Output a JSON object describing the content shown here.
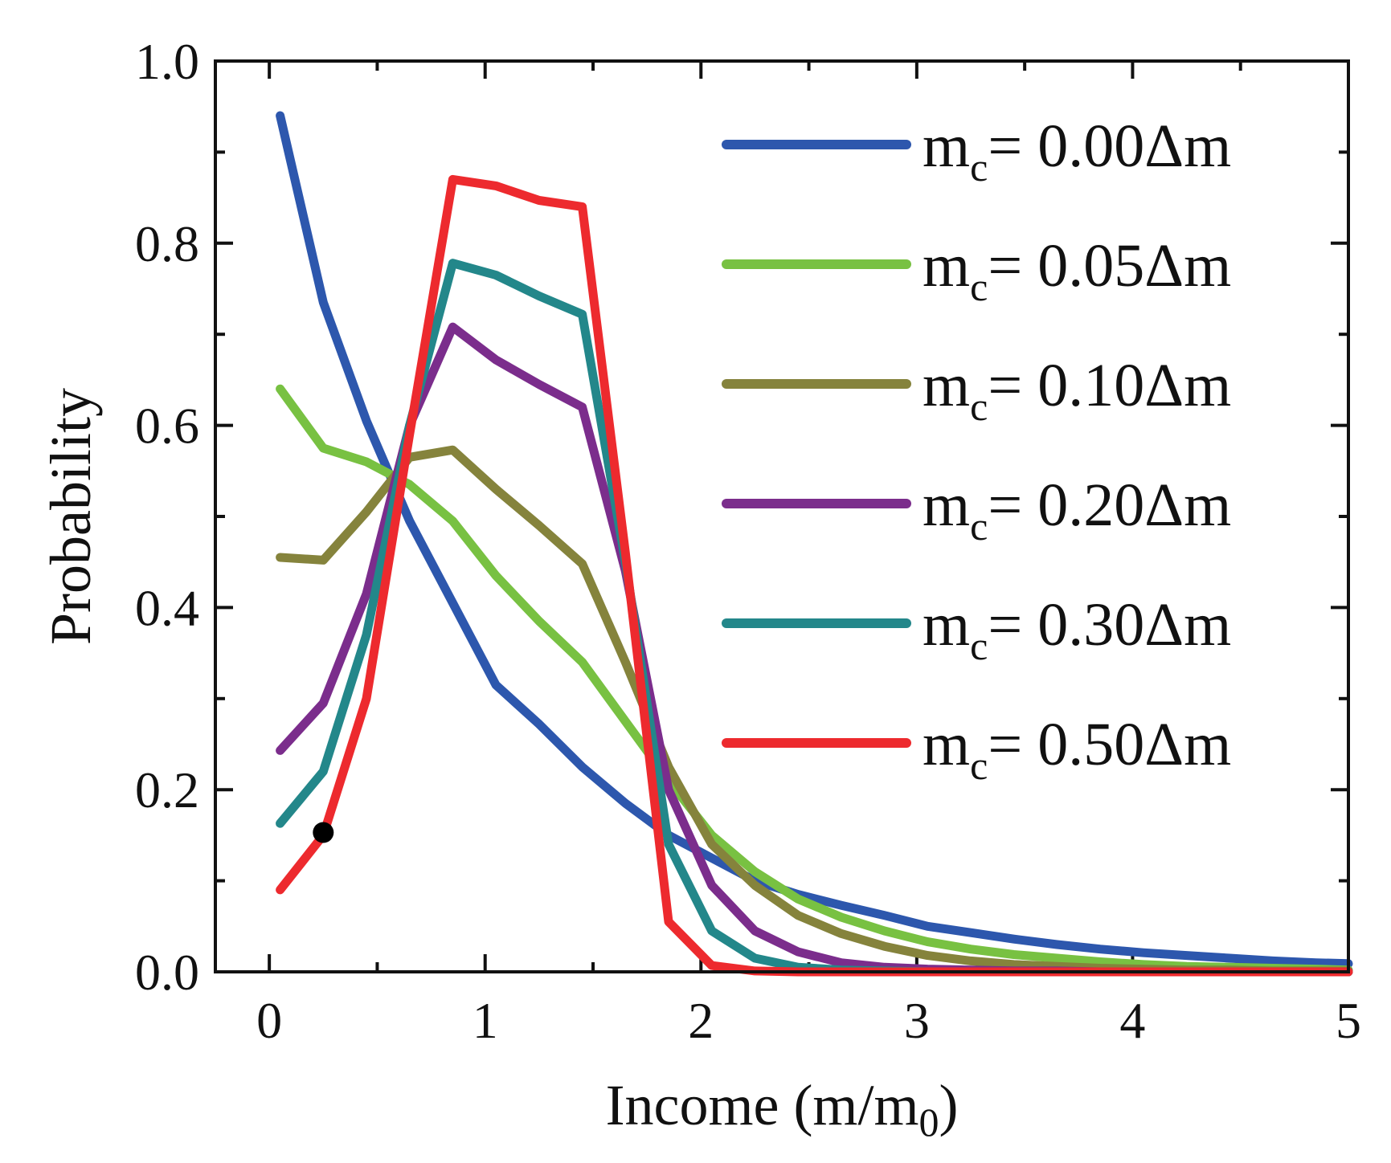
{
  "chart_data": {
    "type": "line",
    "xlabel": "Income (m/m",
    "xlabel_sub": "0",
    "xlabel_close": ")",
    "ylabel": "Probability",
    "xlim": [
      -0.25,
      5
    ],
    "ylim": [
      0,
      1
    ],
    "xticks": [
      "0",
      "1",
      "2",
      "3",
      "4",
      "5"
    ],
    "yticks": [
      "0.0",
      "0.2",
      "0.4",
      "0.6",
      "0.8",
      "1.0"
    ],
    "legend_position": "top-right",
    "x": [
      0.05,
      0.25,
      0.45,
      0.65,
      0.85,
      1.05,
      1.25,
      1.45,
      1.65,
      1.85,
      2.05,
      2.25,
      2.45,
      2.65,
      2.85,
      3.05,
      3.25,
      3.45,
      3.65,
      3.85,
      4.05,
      4.25,
      4.45,
      4.65,
      4.85,
      5.0
    ],
    "series": [
      {
        "name_prefix": "m",
        "name_sub": "c",
        "name_suffix": "= 0.00Δm",
        "color": "#2d57ad",
        "values": [
          0.94,
          0.735,
          0.605,
          0.495,
          0.405,
          0.315,
          0.272,
          0.225,
          0.185,
          0.15,
          0.125,
          0.1,
          0.085,
          0.073,
          0.062,
          0.05,
          0.043,
          0.036,
          0.03,
          0.025,
          0.021,
          0.018,
          0.015,
          0.012,
          0.01,
          0.009
        ]
      },
      {
        "name_prefix": "m",
        "name_sub": "c",
        "name_suffix": "= 0.05Δm",
        "color": "#78c142",
        "values": [
          0.64,
          0.575,
          0.56,
          0.535,
          0.495,
          0.435,
          0.385,
          0.34,
          0.275,
          0.21,
          0.15,
          0.11,
          0.08,
          0.06,
          0.045,
          0.033,
          0.025,
          0.019,
          0.015,
          0.011,
          0.008,
          0.006,
          0.005,
          0.004,
          0.003,
          0.002
        ]
      },
      {
        "name_prefix": "m",
        "name_sub": "c",
        "name_suffix": "= 0.10Δm",
        "color": "#85833c",
        "values": [
          0.455,
          0.452,
          0.505,
          0.565,
          0.573,
          0.53,
          0.49,
          0.448,
          0.34,
          0.225,
          0.14,
          0.095,
          0.062,
          0.042,
          0.028,
          0.018,
          0.012,
          0.008,
          0.006,
          0.004,
          0.003,
          0.002,
          0.002,
          0.001,
          0.001,
          0.001
        ]
      },
      {
        "name_prefix": "m",
        "name_sub": "c",
        "name_suffix": "= 0.20Δm",
        "color": "#7b2d8c",
        "values": [
          0.243,
          0.295,
          0.415,
          0.6,
          0.708,
          0.672,
          0.645,
          0.62,
          0.44,
          0.2,
          0.095,
          0.045,
          0.022,
          0.01,
          0.005,
          0.003,
          0.002,
          0.001,
          0.001,
          0.0,
          0.0,
          0.0,
          0.0,
          0.0,
          0.0,
          0.0
        ]
      },
      {
        "name_prefix": "m",
        "name_sub": "c",
        "name_suffix": "= 0.30Δm",
        "color": "#23878a",
        "values": [
          0.163,
          0.22,
          0.37,
          0.6,
          0.778,
          0.765,
          0.742,
          0.722,
          0.45,
          0.14,
          0.045,
          0.015,
          0.005,
          0.002,
          0.001,
          0.0,
          0.0,
          0.0,
          0.0,
          0.0,
          0.0,
          0.0,
          0.0,
          0.0,
          0.0,
          0.0
        ]
      },
      {
        "name_prefix": "m",
        "name_sub": "c",
        "name_suffix": "= 0.50Δm",
        "color": "#ed2a2e",
        "values": [
          0.09,
          0.15,
          0.3,
          0.59,
          0.87,
          0.863,
          0.847,
          0.84,
          0.46,
          0.055,
          0.007,
          0.001,
          0.0,
          0.0,
          0.0,
          0.0,
          0.0,
          0.0,
          0.0,
          0.0,
          0.0,
          0.0,
          0.0,
          0.0,
          0.0,
          0.0
        ]
      }
    ],
    "marker": {
      "x": 0.25,
      "y": 0.153,
      "color": "#000000"
    }
  }
}
